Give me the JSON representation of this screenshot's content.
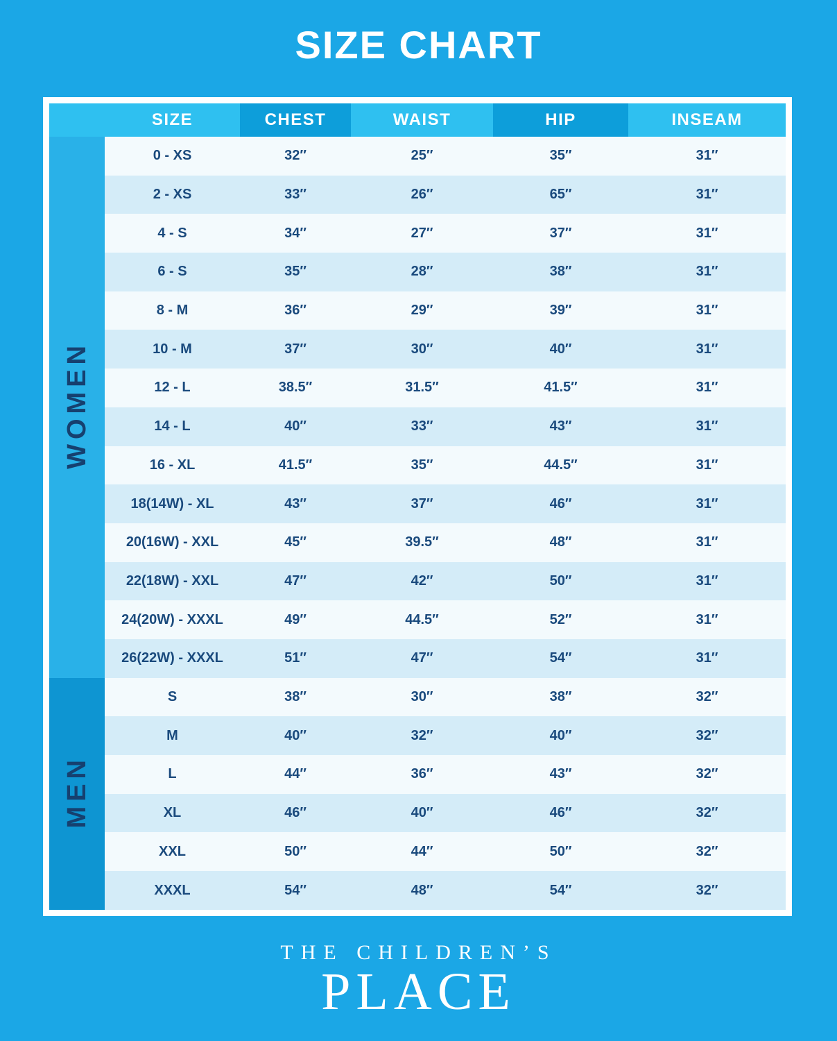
{
  "title": "SIZE CHART",
  "colors": {
    "background": "#1BA7E6",
    "header_light": "#2FC0F0",
    "header_dark": "#0D9EDA",
    "row_light": "#F3FAFD",
    "row_dark": "#D4ECF8",
    "women_band": "#29B1E8",
    "men_band": "#0E95D2",
    "cell_text": "#1A4A7D",
    "frame_border": "#FFFFFF"
  },
  "chart_data": {
    "type": "table",
    "title": "SIZE CHART",
    "columns": [
      "SIZE",
      "CHEST",
      "WAIST",
      "HIP",
      "INSEAM"
    ],
    "sections": [
      {
        "label": "WOMEN",
        "rows": [
          [
            "0 - XS",
            "32″",
            "25″",
            "35″",
            "31″"
          ],
          [
            "2 - XS",
            "33″",
            "26″",
            "65″",
            "31″"
          ],
          [
            "4 - S",
            "34″",
            "27″",
            "37″",
            "31″"
          ],
          [
            "6 - S",
            "35″",
            "28″",
            "38″",
            "31″"
          ],
          [
            "8 - M",
            "36″",
            "29″",
            "39″",
            "31″"
          ],
          [
            "10 - M",
            "37″",
            "30″",
            "40″",
            "31″"
          ],
          [
            "12 - L",
            "38.5″",
            "31.5″",
            "41.5″",
            "31″"
          ],
          [
            "14 - L",
            "40″",
            "33″",
            "43″",
            "31″"
          ],
          [
            "16 - XL",
            "41.5″",
            "35″",
            "44.5″",
            "31″"
          ],
          [
            "18(14W) - XL",
            "43″",
            "37″",
            "46″",
            "31″"
          ],
          [
            "20(16W) - XXL",
            "45″",
            "39.5″",
            "48″",
            "31″"
          ],
          [
            "22(18W) - XXL",
            "47″",
            "42″",
            "50″",
            "31″"
          ],
          [
            "24(20W) - XXXL",
            "49″",
            "44.5″",
            "52″",
            "31″"
          ],
          [
            "26(22W) - XXXL",
            "51″",
            "47″",
            "54″",
            "31″"
          ]
        ]
      },
      {
        "label": "MEN",
        "rows": [
          [
            "S",
            "38″",
            "30″",
            "38″",
            "32″"
          ],
          [
            "M",
            "40″",
            "32″",
            "40″",
            "32″"
          ],
          [
            "L",
            "44″",
            "36″",
            "43″",
            "32″"
          ],
          [
            "XL",
            "46″",
            "40″",
            "46″",
            "32″"
          ],
          [
            "XXL",
            "50″",
            "44″",
            "50″",
            "32″"
          ],
          [
            "XXXL",
            "54″",
            "48″",
            "54″",
            "32″"
          ]
        ]
      }
    ]
  },
  "footer": {
    "brand_top": "THE CHILDREN’S",
    "brand_bottom": "PLACE"
  }
}
